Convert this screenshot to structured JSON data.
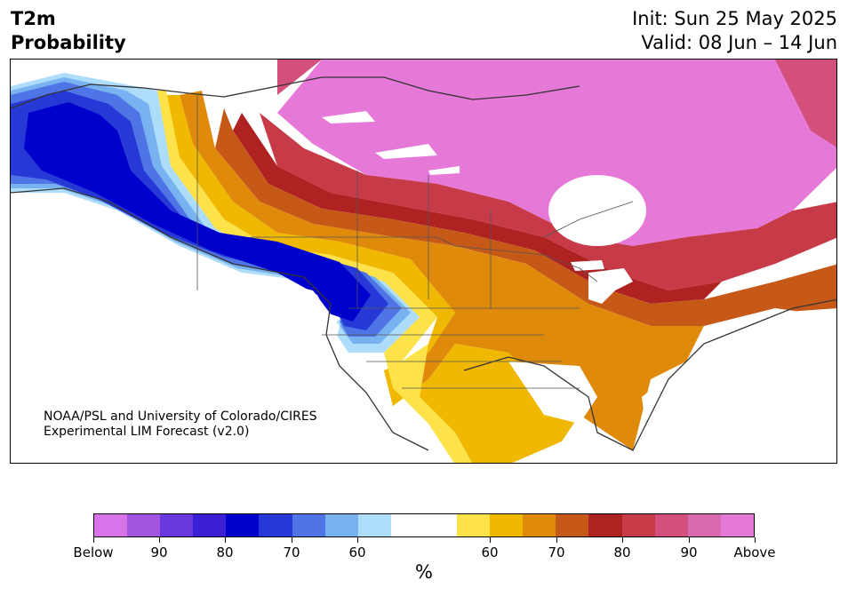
{
  "header": {
    "title_line1": "T2m",
    "title_line2": "Probability",
    "init": "Init: Sun 25 May 2025",
    "valid": "Valid: 08 Jun – 14 Jun"
  },
  "credit": {
    "line1": "NOAA/PSL and University of Colorado/CIRES",
    "line2": "Experimental LIM Forecast (v2.0)"
  },
  "colorbar": {
    "colors": [
      "#d973ea",
      "#a154dd",
      "#6a36dd",
      "#3a1fd4",
      "#0000cc",
      "#2639d6",
      "#4f74e5",
      "#78b2f0",
      "#aedcfb",
      "#ffffff",
      "#ffffff",
      "#fde24a",
      "#f0b800",
      "#e08a0c",
      "#c75918",
      "#ae2221",
      "#c73a48",
      "#d4507c",
      "#d96aaf",
      "#e678d8"
    ],
    "ticks": [
      "Below",
      "90",
      "80",
      "70",
      "60",
      "60",
      "70",
      "80",
      "90",
      "Above"
    ],
    "unit": "%"
  },
  "map": {
    "description_colors": {
      "deep_cold": "#0000cc",
      "cold": "#2639d6",
      "cool": "#4f74e5",
      "light_cool": "#78b2f0",
      "faint_cool": "#aedcfb",
      "faint_warm": "#fde24a",
      "warm": "#f0b800",
      "warmer": "#e08a0c",
      "hot": "#c75918",
      "very_hot": "#ae2221",
      "extreme1": "#c73a48",
      "extreme2": "#d4507c",
      "extreme3": "#e678d8"
    }
  }
}
